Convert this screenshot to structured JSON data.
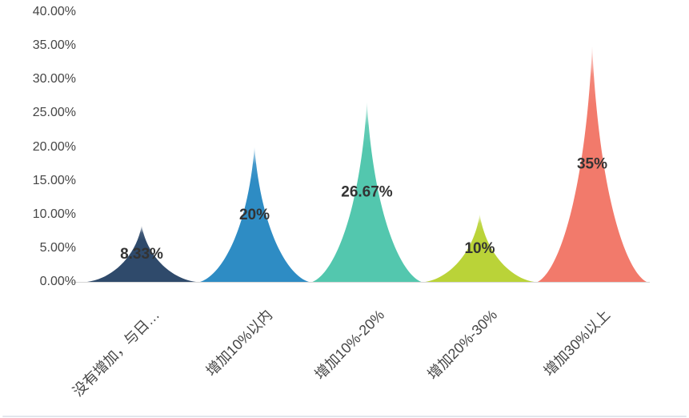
{
  "chart_data": {
    "type": "bar",
    "shape": "peak-pictorial",
    "title": "",
    "xlabel": "",
    "ylabel": "",
    "categories": [
      "没有增加，与日…",
      "增加10%以内",
      "增加10%-20%",
      "增加20%-30%",
      "增加30%以上"
    ],
    "values": [
      8.33,
      20,
      26.67,
      10,
      35
    ],
    "value_labels": [
      "8.33%",
      "20%",
      "26.67%",
      "10%",
      "35%"
    ],
    "colors": [
      "#2F4A6B",
      "#2E8CC4",
      "#53C7AE",
      "#BAD338",
      "#F27A6B"
    ],
    "y_tick_labels": [
      "40.00%",
      "35.00%",
      "30.00%",
      "25.00%",
      "20.00%",
      "15.00%",
      "10.00%",
      "5.00%",
      "0.00%"
    ],
    "y_tick_values": [
      40,
      35,
      30,
      25,
      20,
      15,
      10,
      5,
      0
    ],
    "ylim": [
      0,
      40
    ],
    "grid": false,
    "legend": false,
    "axis_text_color": "#464646",
    "value_label_color": "#333333",
    "axis_line_color": "#d6d6d6"
  },
  "card": {
    "background": "#ffffff",
    "bottom_edge_color": "#e2e6ed"
  }
}
